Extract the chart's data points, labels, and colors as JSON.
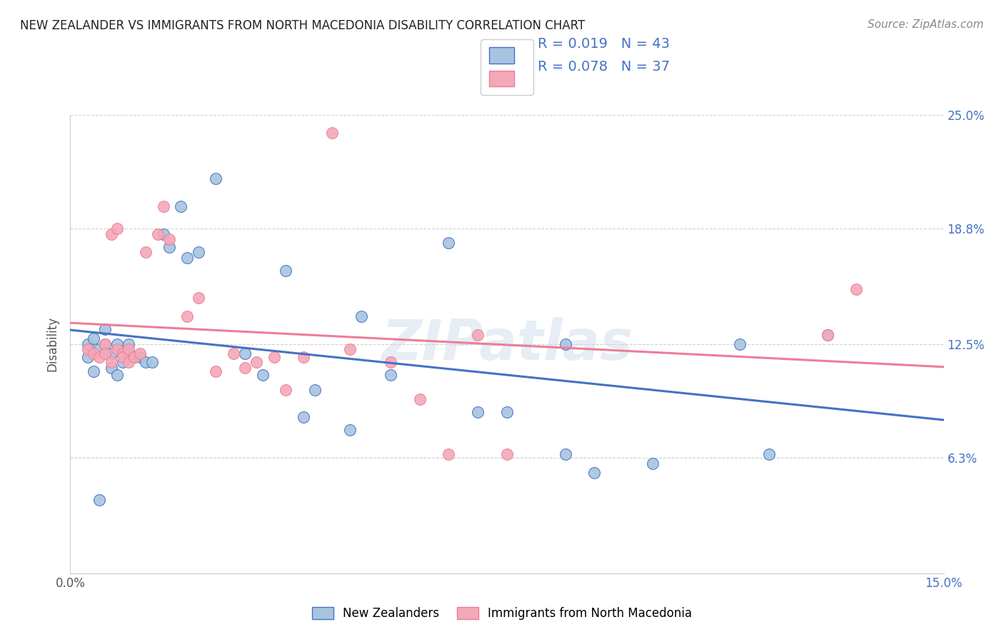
{
  "title": "NEW ZEALANDER VS IMMIGRANTS FROM NORTH MACEDONIA DISABILITY CORRELATION CHART",
  "source": "Source: ZipAtlas.com",
  "ylabel": "Disability",
  "xlim": [
    0.0,
    0.15
  ],
  "ylim": [
    0.0,
    0.25
  ],
  "yticks": [
    0.0,
    0.063,
    0.125,
    0.188,
    0.25
  ],
  "ytick_labels": [
    "",
    "6.3%",
    "12.5%",
    "18.8%",
    "25.0%"
  ],
  "xticks": [
    0.0,
    0.015,
    0.03,
    0.045,
    0.06,
    0.075,
    0.09,
    0.105,
    0.12,
    0.135,
    0.15
  ],
  "xtick_labels": [
    "0.0%",
    "",
    "",
    "",
    "",
    "",
    "",
    "",
    "",
    "",
    "15.0%"
  ],
  "nz_R": 0.019,
  "nz_N": 43,
  "nm_R": 0.078,
  "nm_N": 37,
  "nz_color": "#a8c4e0",
  "nm_color": "#f4a8b8",
  "nz_line_color": "#4472c4",
  "nm_line_color": "#ed7d97",
  "text_color_blue": "#4472c4",
  "legend_label_nz": "New Zealanders",
  "legend_label_nm": "Immigrants from North Macedonia",
  "watermark": "ZIPatlas",
  "nz_x": [
    0.003,
    0.003,
    0.004,
    0.004,
    0.005,
    0.005,
    0.006,
    0.006,
    0.007,
    0.007,
    0.008,
    0.008,
    0.009,
    0.01,
    0.01,
    0.011,
    0.012,
    0.013,
    0.014,
    0.016,
    0.017,
    0.019,
    0.02,
    0.022,
    0.025,
    0.03,
    0.033,
    0.037,
    0.04,
    0.042,
    0.048,
    0.05,
    0.055,
    0.065,
    0.07,
    0.075,
    0.085,
    0.09,
    0.1,
    0.115,
    0.12,
    0.13,
    0.085
  ],
  "nz_y": [
    0.125,
    0.118,
    0.128,
    0.11,
    0.122,
    0.04,
    0.133,
    0.125,
    0.12,
    0.112,
    0.108,
    0.125,
    0.115,
    0.125,
    0.12,
    0.118,
    0.118,
    0.115,
    0.115,
    0.185,
    0.178,
    0.2,
    0.172,
    0.175,
    0.215,
    0.12,
    0.108,
    0.165,
    0.085,
    0.1,
    0.078,
    0.14,
    0.108,
    0.18,
    0.088,
    0.088,
    0.065,
    0.055,
    0.06,
    0.125,
    0.065,
    0.13,
    0.125
  ],
  "nm_x": [
    0.003,
    0.004,
    0.005,
    0.006,
    0.006,
    0.007,
    0.007,
    0.008,
    0.008,
    0.009,
    0.009,
    0.01,
    0.01,
    0.011,
    0.012,
    0.013,
    0.015,
    0.016,
    0.017,
    0.02,
    0.022,
    0.025,
    0.028,
    0.03,
    0.032,
    0.035,
    0.037,
    0.04,
    0.045,
    0.048,
    0.055,
    0.06,
    0.065,
    0.07,
    0.075,
    0.13,
    0.135
  ],
  "nm_y": [
    0.122,
    0.12,
    0.118,
    0.125,
    0.12,
    0.115,
    0.185,
    0.188,
    0.122,
    0.12,
    0.118,
    0.122,
    0.115,
    0.118,
    0.12,
    0.175,
    0.185,
    0.2,
    0.182,
    0.14,
    0.15,
    0.11,
    0.12,
    0.112,
    0.115,
    0.118,
    0.1,
    0.118,
    0.24,
    0.122,
    0.115,
    0.095,
    0.065,
    0.13,
    0.065,
    0.13,
    0.155
  ]
}
